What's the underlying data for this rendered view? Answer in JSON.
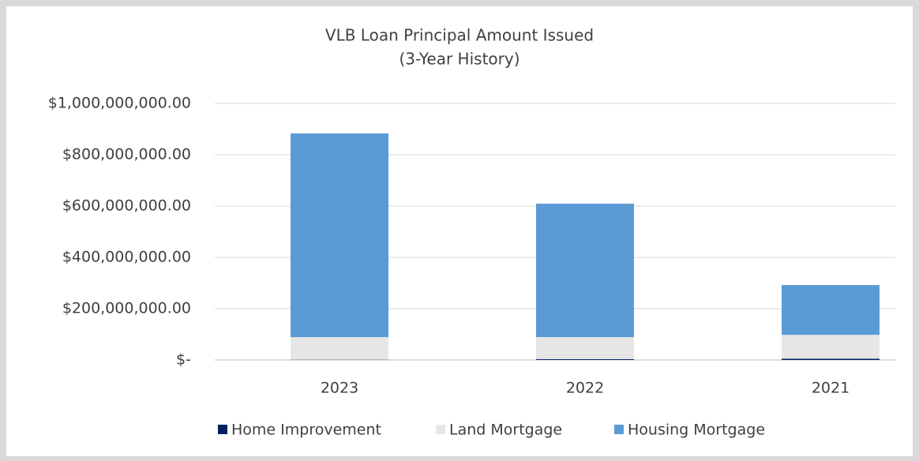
{
  "chart_data": {
    "type": "stacked_bar",
    "title": "VLB Loan Principal Amount Issued",
    "subtitle": "(3-Year History)",
    "categories": [
      "2023",
      "2022",
      "2021"
    ],
    "series": [
      {
        "name": "Home Improvement",
        "color": "#002060",
        "values": [
          1000000,
          3000000,
          5000000
        ]
      },
      {
        "name": "Land Mortgage",
        "color": "#e7e6e6",
        "values": [
          88000000,
          86000000,
          93000000
        ]
      },
      {
        "name": "Housing Mortgage",
        "color": "#5b9bd5",
        "values": [
          794000000,
          520000000,
          194000000
        ]
      }
    ],
    "ylim": [
      0,
      1000000000
    ],
    "yticks": [
      {
        "value": 0,
        "label": "$-"
      },
      {
        "value": 200000000,
        "label": "$200,000,000.00"
      },
      {
        "value": 400000000,
        "label": "$400,000,000.00"
      },
      {
        "value": 600000000,
        "label": "$600,000,000.00"
      },
      {
        "value": 800000000,
        "label": "$800,000,000.00"
      },
      {
        "value": 1000000000,
        "label": "$1,000,000,000.00"
      }
    ],
    "grid": true,
    "legend": "bottom"
  }
}
